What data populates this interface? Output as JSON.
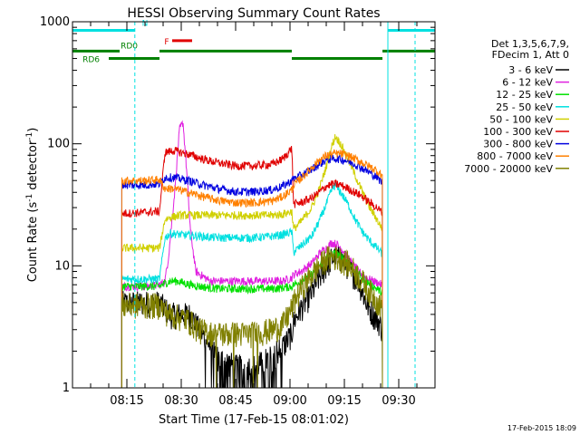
{
  "chart_data": {
    "type": "line",
    "title": "HESSI Observing Summary Count Rates",
    "xlabel": "Start Time (17-Feb-15 08:01:02)",
    "ylabel_main": "Count Rate (s",
    "ylabel_sup1": "-1",
    "ylabel_mid": " detector",
    "ylabel_sup2": "-1",
    "ylabel_end": ")",
    "yscale": "log",
    "ylim": [
      1,
      1000
    ],
    "xlim_min": [
      0,
      100
    ],
    "x_unit": "minutes after 08:00",
    "yticks": [
      1,
      10,
      100,
      1000
    ],
    "ytick_labels": [
      "1",
      "10",
      "100",
      "1000"
    ],
    "xticks": [
      15,
      30,
      45,
      60,
      75,
      90
    ],
    "xtick_labels": [
      "08:15",
      "08:30",
      "08:45",
      "09:00",
      "09:15",
      "09:30"
    ],
    "timestamp": "17-Feb-2015 18:09",
    "legend_header": [
      "Det 1,3,5,6,7,9,",
      "FDecim 1, Att 0"
    ],
    "series": [
      {
        "name": "3 - 6 keV",
        "color": "#000000",
        "x": [
          13.6,
          16,
          20,
          24,
          25.5,
          27,
          29,
          31,
          32.5,
          35,
          40,
          45,
          50,
          55,
          58,
          60.5,
          61,
          63,
          66,
          68,
          70,
          71.5,
          73,
          75,
          77,
          79,
          81,
          83,
          84.5,
          85.5
        ],
        "y": [
          5.0,
          5.0,
          5.0,
          5.0,
          4.5,
          4.0,
          4.0,
          4.0,
          4.0,
          3.0,
          1.8,
          1.5,
          1.5,
          1.8,
          2.2,
          2.8,
          3.5,
          4.5,
          6.0,
          8.0,
          10.0,
          11.5,
          12.0,
          11.0,
          9.0,
          7.5,
          5.0,
          4.0,
          3.5,
          3.0
        ]
      },
      {
        "name": "6 - 12 keV",
        "color": "#e020e0",
        "x": [
          13.6,
          16,
          20,
          24,
          25.5,
          26.5,
          28,
          29.5,
          30.5,
          31.5,
          32.5,
          34,
          38,
          45,
          50,
          55,
          58,
          60.5,
          61,
          63,
          66,
          68,
          70,
          71.5,
          73,
          75,
          77,
          79,
          81,
          83,
          85.5
        ],
        "y": [
          6.8,
          6.8,
          6.8,
          7.0,
          7.5,
          12.0,
          35.0,
          130.0,
          150.0,
          60.0,
          20.0,
          9.0,
          7.5,
          7.5,
          7.5,
          7.5,
          7.5,
          8.0,
          8.5,
          9.0,
          10.5,
          12.5,
          14.0,
          15.5,
          15.0,
          13.0,
          10.5,
          9.0,
          8.0,
          7.5,
          7.0
        ]
      },
      {
        "name": "12 - 25 keV",
        "color": "#00e000",
        "x": [
          13.6,
          16,
          20,
          24,
          25.5,
          27,
          29,
          31,
          32.5,
          35,
          40,
          45,
          50,
          55,
          58,
          60.5,
          61,
          63,
          66,
          68,
          70,
          71.5,
          73,
          75,
          77,
          79,
          81,
          83,
          85.5
        ],
        "y": [
          6.8,
          6.8,
          6.8,
          6.8,
          7.2,
          7.5,
          7.5,
          7.2,
          7.0,
          6.8,
          6.5,
          6.5,
          6.5,
          6.5,
          6.6,
          6.8,
          7.0,
          7.5,
          8.5,
          10.0,
          11.5,
          12.5,
          12.5,
          11.5,
          10.0,
          8.5,
          7.5,
          6.8,
          6.0
        ]
      },
      {
        "name": "25 - 50 keV",
        "color": "#00e0e0",
        "x": [
          13.6,
          16,
          20,
          24,
          25.5,
          27,
          30,
          35,
          40,
          45,
          50,
          55,
          58,
          60.5,
          61,
          63,
          66,
          68,
          70,
          71.5,
          72.5,
          74,
          76,
          78,
          80,
          82,
          84,
          85.5
        ],
        "y": [
          7.8,
          7.8,
          7.8,
          7.8,
          17.0,
          18.5,
          18.0,
          17.5,
          17.0,
          17.0,
          17.0,
          17.5,
          18.0,
          19.0,
          13.0,
          14.5,
          17.5,
          23.0,
          32.0,
          42.0,
          46.0,
          40.0,
          32.0,
          24.0,
          19.0,
          16.0,
          14.0,
          12.5
        ]
      },
      {
        "name": "50 - 100 keV",
        "color": "#d0d000",
        "x": [
          13.6,
          16,
          20,
          24,
          25.5,
          27,
          30,
          35,
          40,
          45,
          50,
          55,
          58,
          60.5,
          61,
          63,
          66,
          68,
          70,
          71.5,
          72.5,
          74,
          76,
          78,
          80,
          82,
          84,
          85.5
        ],
        "y": [
          14.0,
          14.0,
          14.0,
          14.0,
          24.0,
          25.0,
          26.0,
          26.0,
          26.0,
          26.0,
          26.0,
          26.0,
          26.5,
          28.0,
          20.0,
          23.0,
          30.0,
          42.0,
          65.0,
          95.0,
          115.0,
          100.0,
          75.0,
          55.0,
          40.0,
          30.0,
          24.0,
          20.0
        ]
      },
      {
        "name": "100 - 300 keV",
        "color": "#e00000",
        "x": [
          13.6,
          16,
          20,
          24,
          25.5,
          28,
          32,
          36,
          40,
          45,
          50,
          55,
          58,
          60.5,
          61,
          63,
          66,
          68,
          70,
          72,
          74,
          76,
          78,
          80,
          82,
          84,
          85.5
        ],
        "y": [
          27.0,
          27.0,
          27.5,
          28.0,
          85.0,
          88.0,
          82.0,
          75.0,
          70.0,
          66.0,
          66.0,
          68.0,
          75.0,
          92.0,
          32.0,
          33.0,
          36.0,
          40.0,
          45.0,
          47.0,
          46.0,
          43.0,
          40.0,
          37.0,
          33.0,
          30.0,
          27.0
        ]
      },
      {
        "name": "300 - 800 keV",
        "color": "#0000e0",
        "x": [
          13.6,
          16,
          20,
          24,
          25.5,
          28,
          32,
          36,
          40,
          45,
          50,
          55,
          58,
          60.5,
          61,
          63,
          66,
          68,
          70,
          72,
          74,
          76,
          78,
          80,
          82,
          84,
          85.5
        ],
        "y": [
          46.0,
          46.0,
          46.0,
          47.0,
          53.0,
          53.0,
          50.0,
          46.0,
          43.0,
          40.5,
          40.5,
          42.0,
          45.0,
          50.0,
          52.0,
          55.0,
          62.0,
          68.0,
          74.0,
          76.0,
          75.0,
          72.0,
          68.0,
          63.0,
          58.0,
          53.0,
          48.0
        ]
      },
      {
        "name": "800 - 7000 keV",
        "color": "#ff8000",
        "x": [
          13.6,
          16,
          20,
          24,
          25.5,
          28,
          32,
          36,
          40,
          45,
          50,
          55,
          58,
          60.5,
          61,
          63,
          66,
          68,
          70,
          72,
          74,
          76,
          78,
          80,
          82,
          84,
          85.5
        ],
        "y": [
          50.0,
          50.0,
          50.0,
          51.0,
          43.0,
          43.0,
          40.0,
          37.0,
          34.5,
          33.0,
          33.0,
          34.0,
          37.0,
          42.0,
          46.0,
          52.0,
          64.0,
          73.0,
          80.0,
          83.0,
          83.0,
          80.0,
          75.0,
          70.0,
          65.0,
          60.0,
          55.0
        ]
      },
      {
        "name": "7000 - 20000 keV",
        "color": "#808000",
        "x": [
          13.6,
          16,
          20,
          24,
          25.5,
          27,
          30,
          32,
          35,
          40,
          45,
          50,
          55,
          58,
          60.5,
          61,
          63,
          66,
          68,
          70,
          72,
          74,
          76,
          78,
          80,
          82,
          84,
          85.5
        ],
        "y": [
          4.8,
          4.8,
          4.8,
          4.8,
          4.3,
          4.0,
          3.8,
          3.6,
          3.0,
          2.8,
          2.8,
          2.8,
          3.0,
          3.3,
          4.5,
          5.0,
          6.5,
          8.5,
          10.0,
          11.5,
          12.0,
          11.5,
          10.5,
          9.0,
          7.5,
          6.2,
          5.2,
          4.5
        ]
      }
    ],
    "flags": [
      {
        "label": "N",
        "color": "#00e0e0",
        "segments": [
          [
            0,
            17.2,
            850
          ],
          [
            87,
            100,
            850
          ]
        ]
      },
      {
        "label": "F",
        "color": "#e00000",
        "segments": [
          [
            27.5,
            33,
            700
          ]
        ]
      },
      {
        "label": "RD0",
        "color": "#008000",
        "segments": [
          [
            0,
            13,
            575
          ],
          [
            24,
            60.5,
            575
          ],
          [
            85.5,
            100,
            575
          ]
        ]
      },
      {
        "label": "RD6",
        "color": "#008000",
        "segments": [
          [
            10,
            24,
            500
          ],
          [
            60.5,
            85.5,
            500
          ]
        ]
      }
    ],
    "vlines": [
      {
        "color": "#00e0e0",
        "x": [
          0,
          87
        ],
        "style": "solid"
      },
      {
        "color": "#00e0e0",
        "x": [
          17.2,
          94.5
        ],
        "style": "dashed"
      }
    ]
  }
}
